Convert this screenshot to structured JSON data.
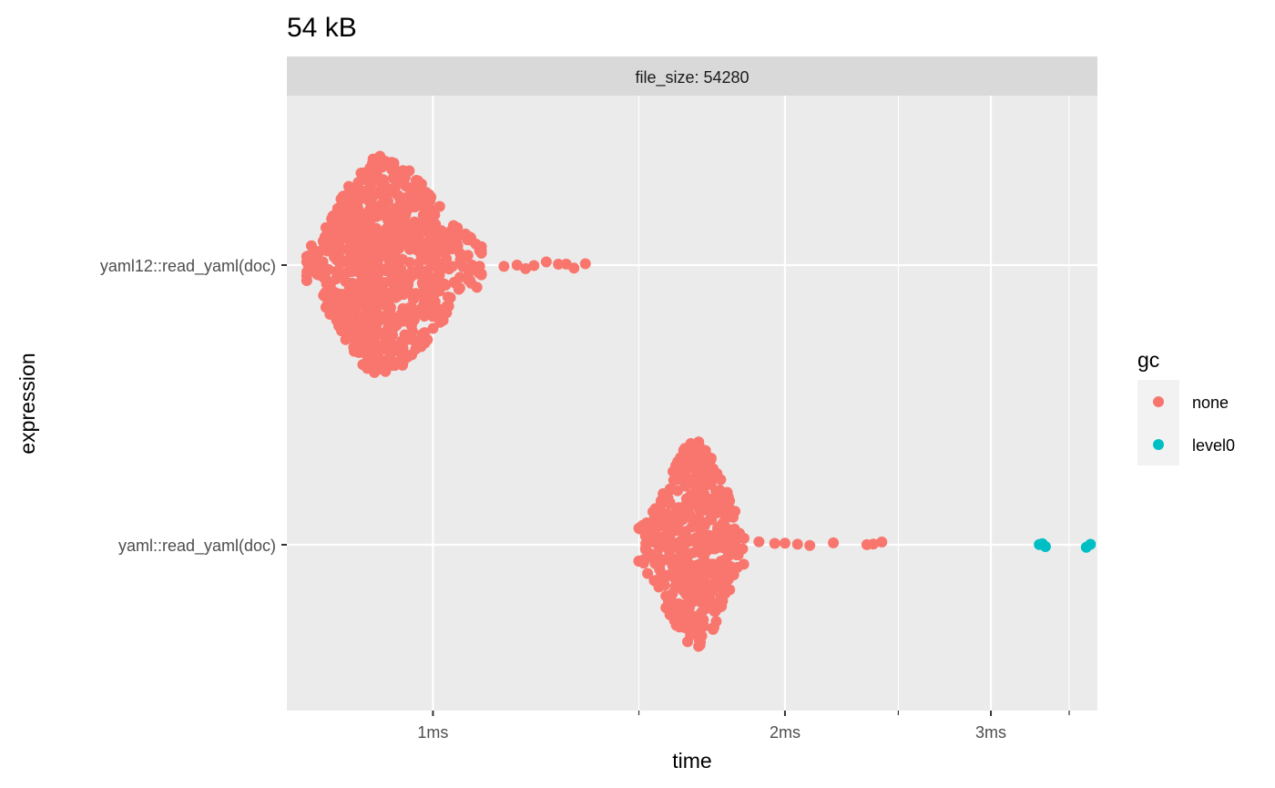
{
  "chart_data": {
    "type": "scatter",
    "variant": "beeswarm",
    "title": "54 kB",
    "facet_label": "file_size: 54280",
    "xlabel": "time",
    "ylabel": "expression",
    "x_scale": "log10",
    "x_unit": "ms",
    "xlim": [
      0.75,
      3.7
    ],
    "x_ticks": [
      {
        "value": 1,
        "label": "1ms"
      },
      {
        "value": 2,
        "label": "2ms"
      },
      {
        "value": 3,
        "label": "3ms"
      }
    ],
    "x_minor_ticks": [
      1.5,
      2.5,
      3.5
    ],
    "categories": [
      "yaml12::read_yaml(doc)",
      "yaml::read_yaml(doc)"
    ],
    "grid": true,
    "legend": {
      "title": "gc",
      "position": "right",
      "entries": [
        {
          "name": "none",
          "color": "#F8766D"
        },
        {
          "name": "level0",
          "color": "#00BFC4"
        }
      ]
    },
    "series": [
      {
        "name": "none",
        "color": "#F8766D",
        "groups": [
          {
            "category": "yaml12::read_yaml(doc)",
            "n": 900,
            "bulk_range_ms": [
              0.78,
              1.1
            ],
            "mode_ms": 0.9,
            "max_spread": 0.4,
            "outliers_ms": [
              1.15,
              1.18,
              1.2,
              1.22,
              1.25,
              1.28,
              1.3,
              1.32,
              1.35
            ]
          },
          {
            "category": "yaml::read_yaml(doc)",
            "n": 480,
            "bulk_range_ms": [
              1.5,
              1.85
            ],
            "mode_ms": 1.68,
            "max_spread": 0.38,
            "outliers_ms": [
              1.9,
              1.96,
              2.0,
              2.05,
              2.1,
              2.2,
              2.35,
              2.38,
              2.42
            ]
          }
        ]
      },
      {
        "name": "level0",
        "color": "#00BFC4",
        "groups": [
          {
            "category": "yaml::read_yaml(doc)",
            "n": 5,
            "points_ms": [
              3.3,
              3.32,
              3.34,
              3.62,
              3.65
            ]
          }
        ]
      }
    ]
  }
}
